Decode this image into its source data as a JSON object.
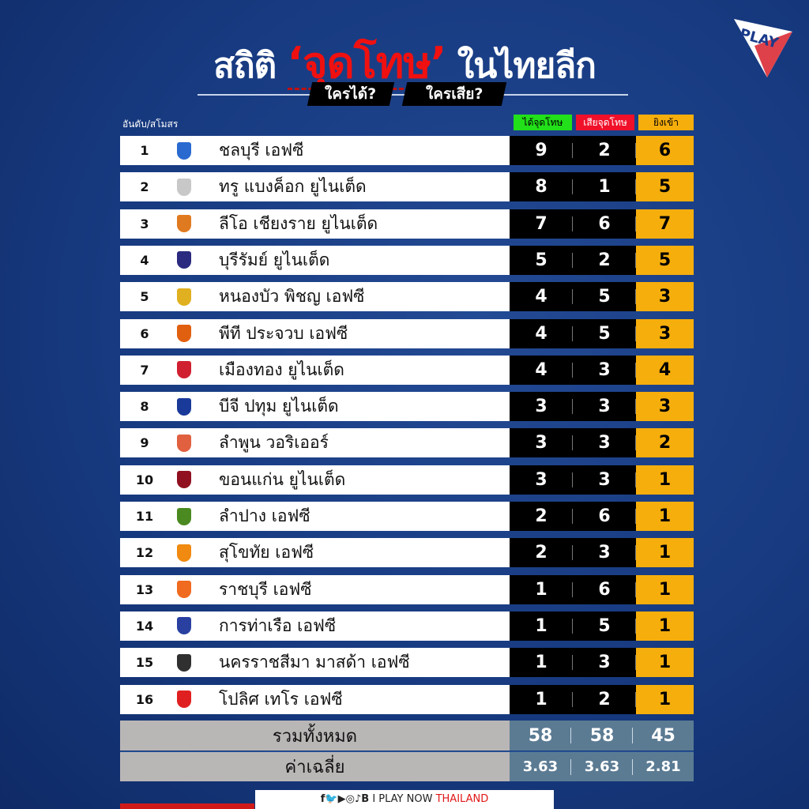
{
  "title": {
    "part1": "สถิติ",
    "highlight": "‘จุดโทษ’",
    "part2": "ในไทยลีก"
  },
  "subtitle": {
    "left": "ใครได้?",
    "right": "ใครเสีย?"
  },
  "logo_text": "PLAY NOW",
  "header": {
    "rank_club": "อันดับ/สโมสร",
    "awarded": "ได้จุดโทษ",
    "conceded": "เสียจุดโทษ",
    "scored": "ยิงเข้า"
  },
  "colors": {
    "awarded": "#22e01a",
    "conceded": "#f0102a",
    "scored": "#f6ae0c"
  },
  "rows": [
    {
      "rank": "1",
      "team": "ชลบุรี เอฟซี",
      "awarded": "9",
      "conceded": "2",
      "scored": "6",
      "crest": "#2a6ad0"
    },
    {
      "rank": "2",
      "team": "ทรู แบงค็อก ยูไนเต็ด",
      "awarded": "8",
      "conceded": "1",
      "scored": "5",
      "crest": "#c8c8c8"
    },
    {
      "rank": "3",
      "team": "ลีโอ เชียงราย ยูไนเต็ด",
      "awarded": "7",
      "conceded": "6",
      "scored": "7",
      "crest": "#e07a20"
    },
    {
      "rank": "4",
      "team": "บุรีรัมย์ ยูไนเต็ด",
      "awarded": "5",
      "conceded": "2",
      "scored": "5",
      "crest": "#2a2a80"
    },
    {
      "rank": "5",
      "team": "หนองบัว พิชญ เอฟซี",
      "awarded": "4",
      "conceded": "5",
      "scored": "3",
      "crest": "#e0b020"
    },
    {
      "rank": "6",
      "team": "พีที ประจวบ เอฟซี",
      "awarded": "4",
      "conceded": "5",
      "scored": "3",
      "crest": "#e06010"
    },
    {
      "rank": "7",
      "team": "เมืองทอง ยูไนเต็ด",
      "awarded": "4",
      "conceded": "3",
      "scored": "4",
      "crest": "#d02030"
    },
    {
      "rank": "8",
      "team": "บีจี ปทุม ยูไนเต็ด",
      "awarded": "3",
      "conceded": "3",
      "scored": "3",
      "crest": "#1a3a9a"
    },
    {
      "rank": "9",
      "team": "ลำพูน วอริเออร์",
      "awarded": "3",
      "conceded": "3",
      "scored": "2",
      "crest": "#e06040"
    },
    {
      "rank": "10",
      "team": "ขอนแก่น ยูไนเต็ด",
      "awarded": "3",
      "conceded": "3",
      "scored": "1",
      "crest": "#901020"
    },
    {
      "rank": "11",
      "team": "ลำปาง เอฟซี",
      "awarded": "2",
      "conceded": "6",
      "scored": "1",
      "crest": "#4a8a20"
    },
    {
      "rank": "12",
      "team": "สุโขทัย เอฟซี",
      "awarded": "2",
      "conceded": "3",
      "scored": "1",
      "crest": "#f08a10"
    },
    {
      "rank": "13",
      "team": "ราชบุรี เอฟซี",
      "awarded": "1",
      "conceded": "6",
      "scored": "1",
      "crest": "#f06a20"
    },
    {
      "rank": "14",
      "team": "การท่าเรือ เอฟซี",
      "awarded": "1",
      "conceded": "5",
      "scored": "1",
      "crest": "#2a40a0"
    },
    {
      "rank": "15",
      "team": "นครราชสีมา มาสด้า เอฟซี",
      "awarded": "1",
      "conceded": "3",
      "scored": "1",
      "crest": "#303030"
    },
    {
      "rank": "16",
      "team": "โปลิศ เทโร เอฟซี",
      "awarded": "1",
      "conceded": "2",
      "scored": "1",
      "crest": "#e02020"
    }
  ],
  "totals": {
    "label": "รวมทั้งหมด",
    "awarded": "58",
    "conceded": "58",
    "scored": "45"
  },
  "average": {
    "label": "ค่าเฉลี่ย",
    "awarded": "3.63",
    "conceded": "3.63",
    "scored": "2.81"
  },
  "footer": {
    "icons": "f🐦▶◎♪B",
    "sep": "I",
    "brand": "PLAY NOW",
    "brand_red": "THAILAND"
  }
}
